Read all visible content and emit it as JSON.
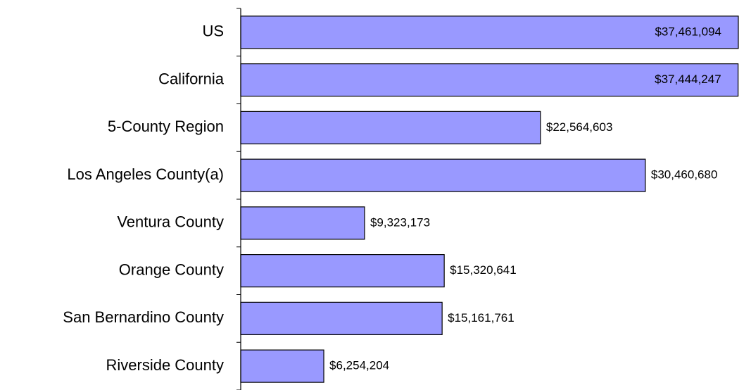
{
  "chart_data": {
    "type": "bar",
    "orientation": "horizontal",
    "categories": [
      "US",
      "California",
      "5-County Region",
      "Los Angeles County(a)",
      "Ventura County",
      "Orange County",
      "San Bernardino County",
      "Riverside County"
    ],
    "values": [
      37461094,
      37444247,
      22564603,
      30460680,
      9323173,
      15320641,
      15161761,
      6254204
    ],
    "value_labels": [
      "$37,461,094",
      "$37,444,247",
      "$22,564,603",
      "$30,460,680",
      "$9,323,173",
      "$15,320,641",
      "$15,161,761",
      "$6,254,204"
    ],
    "color": "#9999ff"
  }
}
